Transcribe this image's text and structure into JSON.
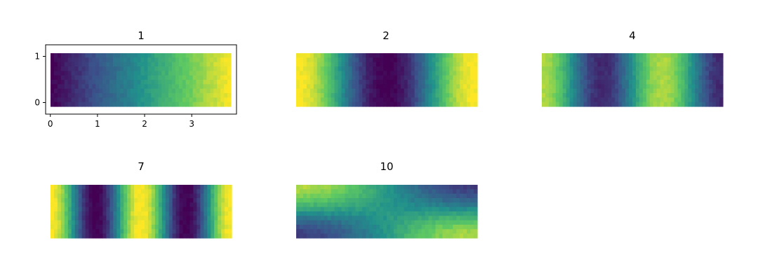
{
  "chart_data": [
    {
      "type": "heatmap",
      "title": "1",
      "color_map": "viridis",
      "axes_visible": true,
      "xlim": [
        -0.1,
        3.95
      ],
      "ylim": [
        -0.25,
        1.25
      ],
      "x_ticks": [
        "0",
        "1",
        "2",
        "3"
      ],
      "y_ticks": [
        "0",
        "1"
      ],
      "domain_x": [
        0,
        3.85
      ],
      "domain_y": [
        -0.05,
        1.05
      ],
      "mode": 1,
      "pattern": "cos(1·π·x/L)"
    },
    {
      "type": "heatmap",
      "title": "2",
      "color_map": "viridis",
      "axes_visible": false,
      "domain_x": [
        0,
        3.85
      ],
      "domain_y": [
        -0.05,
        1.05
      ],
      "mode": 2,
      "pattern": "cos(2·π·x/L)"
    },
    {
      "type": "heatmap",
      "title": "4",
      "color_map": "viridis",
      "axes_visible": false,
      "domain_x": [
        0,
        3.85
      ],
      "domain_y": [
        -0.05,
        1.05
      ],
      "mode": 4,
      "pattern": "cos(3·π·x/L)"
    },
    {
      "type": "heatmap",
      "title": "7",
      "color_map": "viridis",
      "axes_visible": false,
      "domain_x": [
        0,
        3.85
      ],
      "domain_y": [
        -0.05,
        1.05
      ],
      "mode": 7,
      "pattern": "cos(4·π·x/L)"
    },
    {
      "type": "heatmap",
      "title": "10",
      "color_map": "viridis",
      "axes_visible": false,
      "domain_x": [
        0,
        3.85
      ],
      "domain_y": [
        -0.05,
        1.05
      ],
      "mode": 10,
      "pattern": "cos(π·x/L)·cos(π·y/H)"
    }
  ],
  "colors": {
    "viridis_stops": [
      "#440154",
      "#3b528b",
      "#21918c",
      "#5ec962",
      "#fde725"
    ]
  }
}
